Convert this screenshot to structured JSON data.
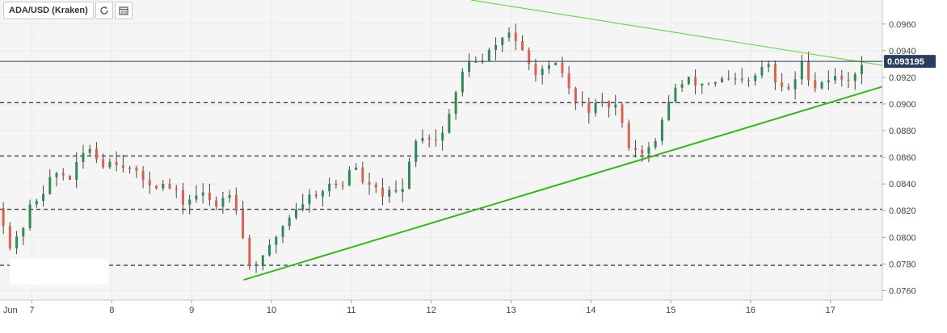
{
  "header": {
    "symbol_title": "ADA/USD (Kraken)"
  },
  "icons": {
    "refresh": "refresh-icon",
    "calendar": "calendar-icon"
  },
  "colors": {
    "up": "#2e8b57",
    "down": "#d9614f",
    "wick": "#444444",
    "trend_upper": "#66dd44",
    "trend_lower": "#33bb11",
    "price_line": "#2a3f5f",
    "price_badge": "#2a3f5f",
    "support_lines": "#444444",
    "plot_bg": "#f5f5f5"
  },
  "current_price_label": "0.093195",
  "chart_data": {
    "type": "candlestick",
    "title": "ADA/USD (Kraken)",
    "y_axis": {
      "position": "right",
      "ylim": [
        0.0753,
        0.0978
      ],
      "ticks": [
        "0.0760",
        "0.0780",
        "0.0800",
        "0.0820",
        "0.0840",
        "0.0860",
        "0.0880",
        "0.0900",
        "0.0920",
        "0.0940",
        "0.0960"
      ]
    },
    "x_axis": {
      "range": [
        6.6,
        17.65
      ],
      "ticks": [
        {
          "x": 6.6,
          "label": "Jun"
        },
        {
          "x": 7,
          "label": "7"
        },
        {
          "x": 8,
          "label": "8"
        },
        {
          "x": 9,
          "label": "9"
        },
        {
          "x": 10,
          "label": "10"
        },
        {
          "x": 11,
          "label": "11"
        },
        {
          "x": 12,
          "label": "12"
        },
        {
          "x": 13,
          "label": "13"
        },
        {
          "x": 14,
          "label": "14"
        },
        {
          "x": 15,
          "label": "15"
        },
        {
          "x": 16,
          "label": "16"
        },
        {
          "x": 17,
          "label": "17"
        }
      ]
    },
    "grid": true,
    "current_price": 0.093195,
    "support_resistance_levels": [
      0.0779,
      0.0821,
      0.0861,
      0.0901
    ],
    "trendlines": [
      {
        "name": "upper",
        "x1": 12.5,
        "y1": 0.0978,
        "x2": 17.65,
        "y2": 0.0929
      },
      {
        "name": "lower",
        "x1": 9.65,
        "y1": 0.0768,
        "x2": 17.65,
        "y2": 0.0913
      }
    ],
    "price_path": [
      [
        6.6,
        0.0822
      ],
      [
        6.75,
        0.0788
      ],
      [
        7.0,
        0.0825
      ],
      [
        7.3,
        0.0848
      ],
      [
        7.5,
        0.0845
      ],
      [
        7.7,
        0.087
      ],
      [
        7.85,
        0.0856
      ],
      [
        8.1,
        0.0858
      ],
      [
        8.3,
        0.0846
      ],
      [
        8.5,
        0.0841
      ],
      [
        8.7,
        0.0838
      ],
      [
        8.9,
        0.0826
      ],
      [
        9.1,
        0.0833
      ],
      [
        9.3,
        0.0824
      ],
      [
        9.5,
        0.0837
      ],
      [
        9.6,
        0.0815
      ],
      [
        9.7,
        0.0779
      ],
      [
        9.9,
        0.0783
      ],
      [
        10.1,
        0.0806
      ],
      [
        10.3,
        0.0822
      ],
      [
        10.5,
        0.0832
      ],
      [
        10.7,
        0.0838
      ],
      [
        10.9,
        0.084
      ],
      [
        11.0,
        0.0856
      ],
      [
        11.2,
        0.0837
      ],
      [
        11.5,
        0.0831
      ],
      [
        11.65,
        0.0835
      ],
      [
        11.75,
        0.0868
      ],
      [
        11.9,
        0.0878
      ],
      [
        12.1,
        0.0872
      ],
      [
        12.3,
        0.0905
      ],
      [
        12.45,
        0.0935
      ],
      [
        12.6,
        0.0928
      ],
      [
        12.8,
        0.0944
      ],
      [
        13.0,
        0.0956
      ],
      [
        13.2,
        0.0929
      ],
      [
        13.4,
        0.0923
      ],
      [
        13.6,
        0.0929
      ],
      [
        13.8,
        0.0901
      ],
      [
        14.0,
        0.0896
      ],
      [
        14.3,
        0.09
      ],
      [
        14.45,
        0.0872
      ],
      [
        14.6,
        0.0864
      ],
      [
        14.8,
        0.0868
      ],
      [
        15.0,
        0.0909
      ],
      [
        15.2,
        0.0917
      ],
      [
        15.4,
        0.0915
      ],
      [
        15.6,
        0.0918
      ],
      [
        15.8,
        0.0916
      ],
      [
        16.0,
        0.0915
      ],
      [
        16.2,
        0.0932
      ],
      [
        16.35,
        0.091
      ],
      [
        16.5,
        0.0912
      ],
      [
        16.65,
        0.093
      ],
      [
        16.8,
        0.0914
      ],
      [
        17.0,
        0.092
      ],
      [
        17.2,
        0.0918
      ],
      [
        17.4,
        0.0931
      ]
    ]
  }
}
